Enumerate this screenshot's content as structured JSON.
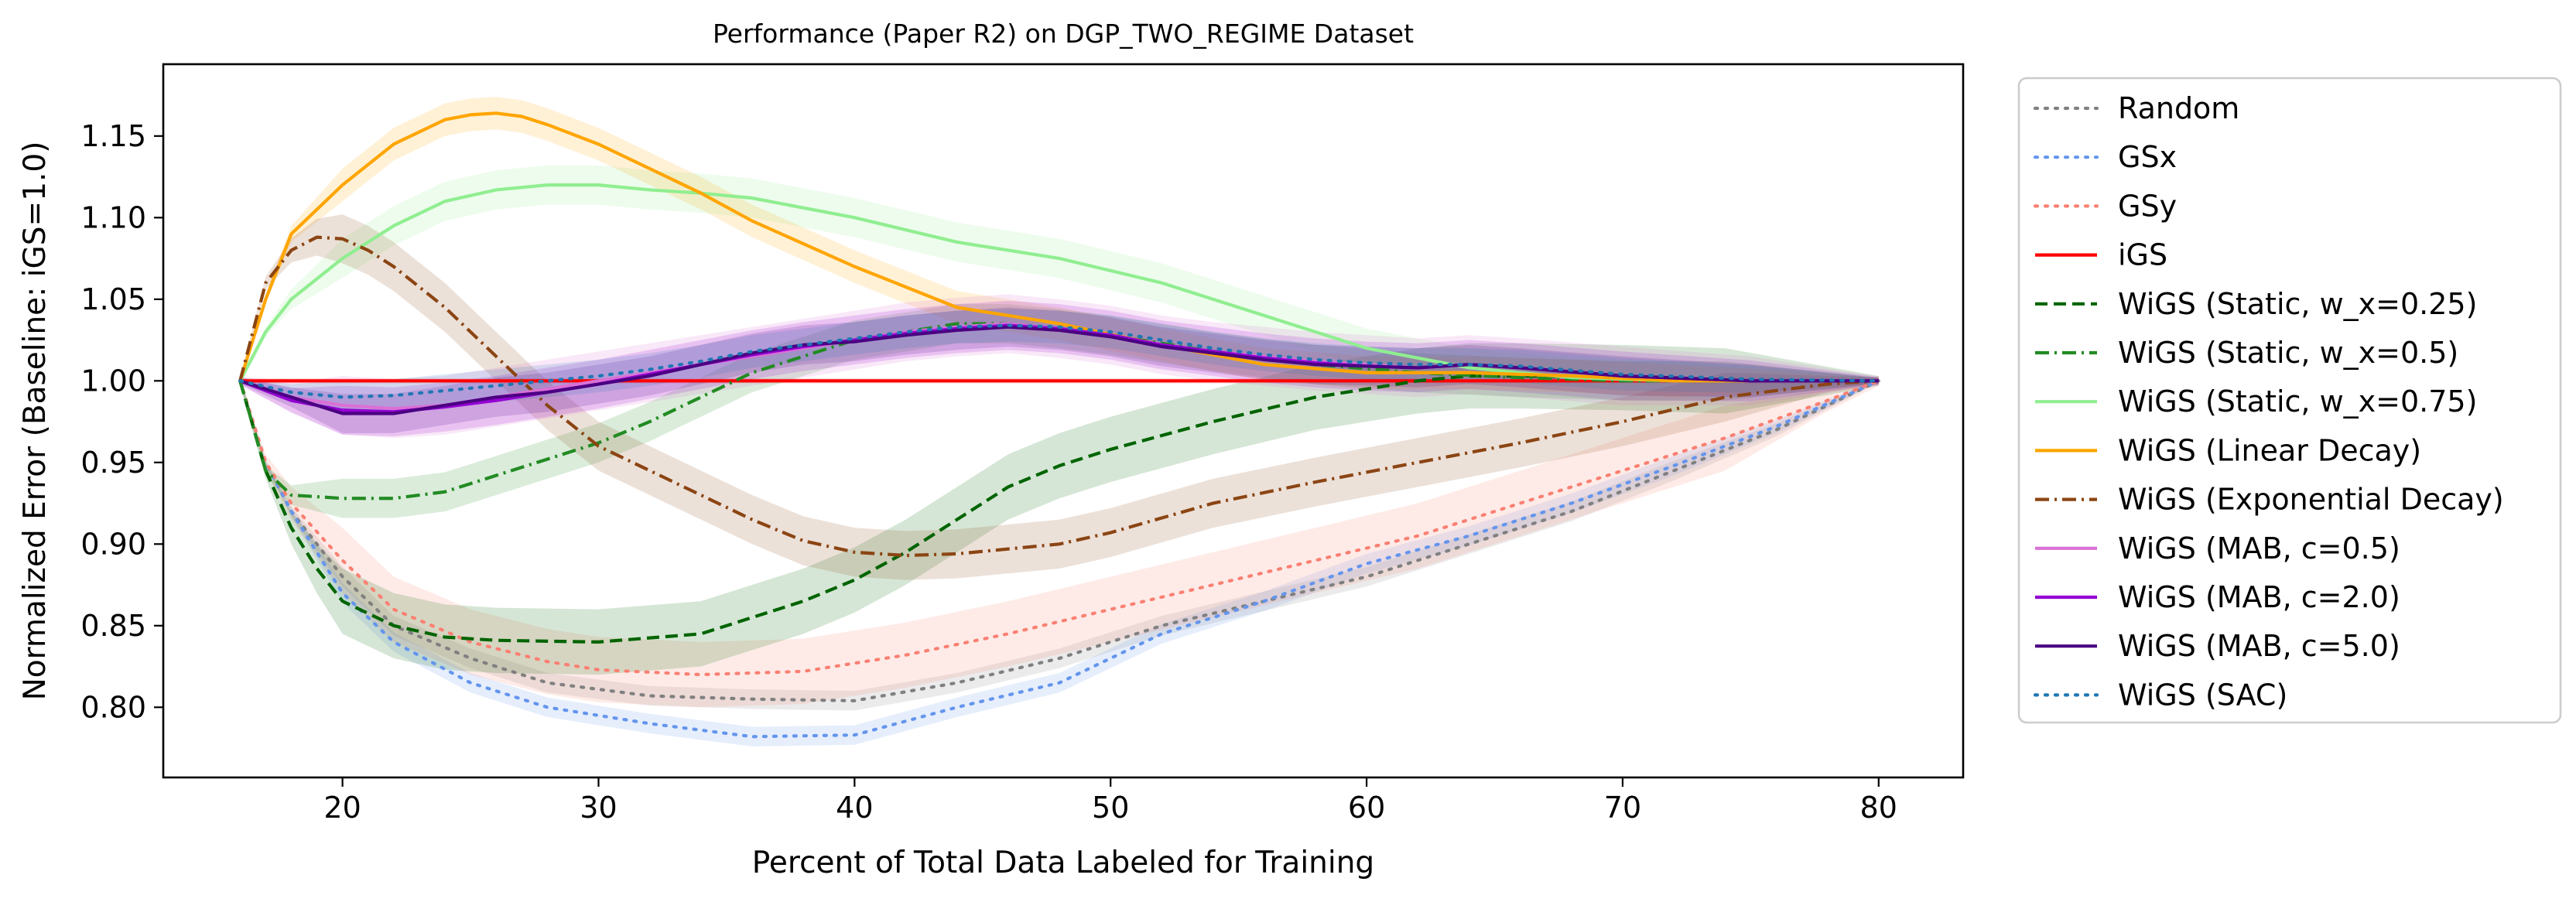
{
  "chart_data": {
    "type": "line",
    "title": "Performance (Paper R2) on DGP_TWO_REGIME Dataset",
    "xlabel": "Percent of Total Data Labeled for Training",
    "ylabel": "Normalized Error (Baseline: iGS=1.0)",
    "xlim": [
      13,
      83.3
    ],
    "ylim": [
      0.757,
      1.194
    ],
    "xticks": [
      20,
      30,
      40,
      50,
      60,
      70,
      80
    ],
    "xtick_labels": [
      "20",
      "30",
      "40",
      "50",
      "60",
      "70",
      "80"
    ],
    "yticks": [
      0.8,
      0.85,
      0.9,
      0.95,
      1.0,
      1.05,
      1.1,
      1.15
    ],
    "ytick_labels": [
      "0.80",
      "0.85",
      "0.90",
      "0.95",
      "1.00",
      "1.05",
      "1.10",
      "1.15"
    ],
    "grid": false,
    "legend_position": "outside-right",
    "series": [
      {
        "name": "Random",
        "color": "#808080",
        "dash": "dotted",
        "band": 0.006,
        "x": [
          16,
          17,
          18,
          20,
          22,
          25,
          28,
          32,
          36,
          40,
          44,
          48,
          52,
          56,
          60,
          64,
          68,
          72,
          76,
          80
        ],
        "y": [
          1.0,
          0.95,
          0.92,
          0.88,
          0.85,
          0.83,
          0.815,
          0.807,
          0.805,
          0.804,
          0.815,
          0.83,
          0.85,
          0.865,
          0.88,
          0.9,
          0.92,
          0.945,
          0.97,
          1.0
        ]
      },
      {
        "name": "GSx",
        "color": "#6495ED",
        "dash": "dotted",
        "band": 0.006,
        "x": [
          16,
          17,
          18,
          20,
          22,
          25,
          28,
          32,
          36,
          40,
          44,
          48,
          52,
          56,
          60,
          64,
          68,
          72,
          76,
          80
        ],
        "y": [
          1.0,
          0.95,
          0.92,
          0.87,
          0.84,
          0.815,
          0.8,
          0.79,
          0.782,
          0.783,
          0.8,
          0.815,
          0.845,
          0.865,
          0.888,
          0.905,
          0.925,
          0.948,
          0.972,
          1.0
        ]
      },
      {
        "name": "GSy",
        "color": "#FA8072",
        "dash": "dotted",
        "band": 0.02,
        "x": [
          16,
          17,
          18,
          20,
          22,
          25,
          28,
          30,
          34,
          38,
          42,
          46,
          50,
          54,
          58,
          62,
          66,
          70,
          74,
          78,
          80
        ],
        "y": [
          1.0,
          0.95,
          0.925,
          0.89,
          0.86,
          0.84,
          0.828,
          0.823,
          0.82,
          0.822,
          0.832,
          0.845,
          0.86,
          0.875,
          0.89,
          0.905,
          0.925,
          0.945,
          0.965,
          0.988,
          1.0
        ]
      },
      {
        "name": "iGS",
        "color": "#FF0000",
        "dash": "solid",
        "band": 0.01,
        "x": [
          16,
          80
        ],
        "y": [
          1.0,
          1.0
        ]
      },
      {
        "name": "WiGS (Static, w_x=0.25)",
        "color": "#006400",
        "dash": "dashed",
        "band": 0.02,
        "x": [
          16,
          17,
          18,
          19,
          20,
          22,
          24,
          26,
          30,
          34,
          36,
          38,
          40,
          42,
          44,
          46,
          48,
          50,
          54,
          58,
          62,
          64,
          66,
          70,
          74,
          80
        ],
        "y": [
          1.0,
          0.945,
          0.91,
          0.885,
          0.865,
          0.85,
          0.843,
          0.841,
          0.84,
          0.845,
          0.855,
          0.865,
          0.878,
          0.895,
          0.915,
          0.935,
          0.948,
          0.958,
          0.975,
          0.99,
          1.0,
          1.003,
          1.003,
          1.002,
          1.0,
          1.0
        ]
      },
      {
        "name": "WiGS (Static, w_x=0.5)",
        "color": "#228B22",
        "dash": "dashdot",
        "band": 0.012,
        "x": [
          16,
          17,
          18,
          20,
          22,
          24,
          26,
          28,
          30,
          32,
          34,
          36,
          38,
          40,
          42,
          44,
          46,
          48,
          50,
          54,
          58,
          62,
          66,
          70,
          74,
          80
        ],
        "y": [
          1.0,
          0.945,
          0.93,
          0.928,
          0.928,
          0.932,
          0.942,
          0.952,
          0.962,
          0.975,
          0.99,
          1.005,
          1.015,
          1.025,
          1.03,
          1.035,
          1.035,
          1.032,
          1.028,
          1.018,
          1.01,
          1.005,
          1.002,
          1.0,
          1.0,
          1.0
        ]
      },
      {
        "name": "WiGS (Static, w_x=0.75)",
        "color": "#90EE90",
        "dash": "solid",
        "band": 0.012,
        "x": [
          16,
          17,
          18,
          20,
          22,
          24,
          26,
          28,
          30,
          32,
          34,
          36,
          40,
          44,
          48,
          52,
          56,
          60,
          64,
          68,
          72,
          76,
          80
        ],
        "y": [
          1.0,
          1.03,
          1.05,
          1.075,
          1.095,
          1.11,
          1.117,
          1.12,
          1.12,
          1.117,
          1.115,
          1.112,
          1.1,
          1.085,
          1.075,
          1.06,
          1.04,
          1.02,
          1.008,
          1.002,
          1.0,
          1.0,
          1.0
        ]
      },
      {
        "name": "WiGS (Linear Decay)",
        "color": "#FFA500",
        "dash": "solid",
        "band": 0.01,
        "x": [
          16,
          17,
          18,
          20,
          22,
          24,
          25,
          26,
          27,
          28,
          30,
          32,
          34,
          36,
          40,
          44,
          48,
          52,
          56,
          60,
          64,
          68,
          72,
          76,
          80
        ],
        "y": [
          1.0,
          1.05,
          1.09,
          1.12,
          1.145,
          1.16,
          1.163,
          1.164,
          1.162,
          1.157,
          1.145,
          1.13,
          1.115,
          1.098,
          1.07,
          1.045,
          1.035,
          1.022,
          1.01,
          1.005,
          1.005,
          1.003,
          1.0,
          1.0,
          1.0
        ]
      },
      {
        "name": "WiGS (Exponential Decay)",
        "color": "#8B4513",
        "dash": "dashdot",
        "band": 0.015,
        "x": [
          16,
          17,
          18,
          19,
          20,
          21,
          22,
          24,
          26,
          28,
          30,
          32,
          34,
          36,
          38,
          40,
          42,
          44,
          46,
          48,
          50,
          54,
          58,
          62,
          66,
          70,
          74,
          78,
          80
        ],
        "y": [
          1.0,
          1.06,
          1.08,
          1.088,
          1.087,
          1.08,
          1.07,
          1.045,
          1.015,
          0.985,
          0.96,
          0.945,
          0.93,
          0.915,
          0.902,
          0.895,
          0.893,
          0.894,
          0.897,
          0.9,
          0.907,
          0.925,
          0.938,
          0.95,
          0.962,
          0.975,
          0.99,
          0.998,
          1.0
        ]
      },
      {
        "name": "WiGS (MAB, c=0.5)",
        "color": "#DA70D6",
        "dash": "solid",
        "band": 0.018,
        "x": [
          16,
          18,
          20,
          22,
          24,
          26,
          28,
          30,
          32,
          34,
          36,
          38,
          40,
          42,
          44,
          46,
          48,
          50,
          52,
          54,
          56,
          58,
          60,
          62,
          64,
          66,
          70,
          75,
          80
        ],
        "y": [
          1.0,
          0.99,
          0.985,
          0.983,
          0.985,
          0.99,
          0.995,
          1.0,
          1.005,
          1.01,
          1.015,
          1.02,
          1.025,
          1.03,
          1.033,
          1.035,
          1.032,
          1.028,
          1.022,
          1.018,
          1.015,
          1.012,
          1.01,
          1.008,
          1.01,
          1.008,
          1.003,
          1.0,
          1.0
        ]
      },
      {
        "name": "WiGS (MAB, c=2.0)",
        "color": "#9400D3",
        "dash": "solid",
        "band": 0.015,
        "x": [
          16,
          18,
          20,
          22,
          24,
          26,
          28,
          30,
          32,
          34,
          36,
          38,
          40,
          42,
          44,
          46,
          48,
          50,
          52,
          54,
          56,
          58,
          60,
          62,
          64,
          66,
          70,
          75,
          80
        ],
        "y": [
          1.0,
          0.988,
          0.982,
          0.981,
          0.984,
          0.988,
          0.993,
          0.998,
          1.004,
          1.01,
          1.016,
          1.021,
          1.025,
          1.029,
          1.032,
          1.034,
          1.032,
          1.028,
          1.022,
          1.018,
          1.014,
          1.011,
          1.009,
          1.008,
          1.01,
          1.008,
          1.003,
          1.0,
          1.0
        ]
      },
      {
        "name": "WiGS (MAB, c=5.0)",
        "color": "#4B0082",
        "dash": "solid",
        "band": 0.012,
        "x": [
          16,
          18,
          20,
          22,
          24,
          26,
          28,
          30,
          32,
          34,
          36,
          38,
          40,
          42,
          44,
          46,
          48,
          50,
          52,
          54,
          56,
          58,
          60,
          62,
          64,
          66,
          70,
          75,
          80
        ],
        "y": [
          1.0,
          0.99,
          0.98,
          0.98,
          0.985,
          0.99,
          0.993,
          0.998,
          1.003,
          1.01,
          1.017,
          1.022,
          1.024,
          1.028,
          1.031,
          1.033,
          1.031,
          1.027,
          1.021,
          1.017,
          1.013,
          1.01,
          1.009,
          1.008,
          1.01,
          1.008,
          1.003,
          1.0,
          1.0
        ]
      },
      {
        "name": "WiGS (SAC)",
        "color": "#1F77B4",
        "dash": "dotted",
        "band": 0.01,
        "x": [
          16,
          18,
          20,
          22,
          24,
          26,
          28,
          30,
          32,
          34,
          36,
          38,
          40,
          42,
          44,
          46,
          48,
          50,
          52,
          54,
          56,
          58,
          60,
          62,
          64,
          66,
          70,
          75,
          80
        ],
        "y": [
          1.0,
          0.993,
          0.99,
          0.991,
          0.994,
          0.997,
          1.0,
          1.003,
          1.007,
          1.012,
          1.018,
          1.022,
          1.026,
          1.03,
          1.033,
          1.034,
          1.033,
          1.03,
          1.025,
          1.02,
          1.016,
          1.013,
          1.011,
          1.01,
          1.01,
          1.009,
          1.004,
          1.001,
          1.0
        ]
      }
    ]
  }
}
